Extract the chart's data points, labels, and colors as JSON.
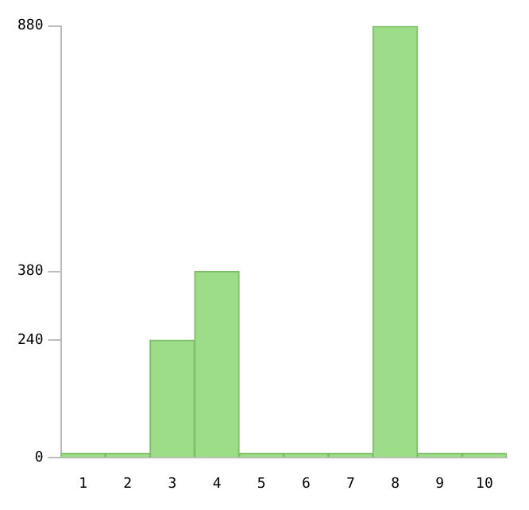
{
  "chart_data": {
    "type": "bar",
    "categories": [
      "1",
      "2",
      "3",
      "4",
      "5",
      "6",
      "7",
      "8",
      "9",
      "10"
    ],
    "values": [
      0,
      0,
      240,
      380,
      0,
      0,
      0,
      880,
      0,
      0
    ],
    "color": "#9ddd88",
    "ylim": [
      0,
      880
    ],
    "yticks": [
      0,
      240,
      380,
      880
    ],
    "grid": false
  }
}
